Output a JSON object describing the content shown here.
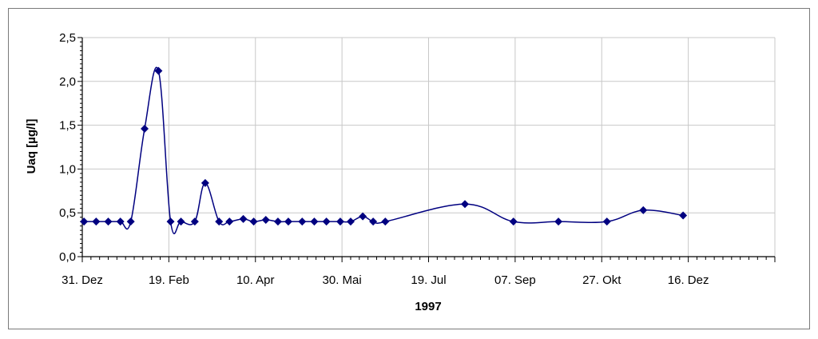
{
  "chart_data": {
    "type": "line",
    "title": "",
    "xlabel": "1997",
    "ylabel": "Uaq [µg/l]",
    "x_tick_labels": [
      "31. Dez",
      "19. Feb",
      "10. Apr",
      "30. Mai",
      "19. Jul",
      "07. Sep",
      "27. Okt",
      "16. Dez"
    ],
    "x_tick_days": [
      0,
      50,
      100,
      150,
      200,
      250,
      300,
      350
    ],
    "x_range_days": [
      0,
      400
    ],
    "y_ticks": [
      0.0,
      0.5,
      1.0,
      1.5,
      2.0,
      2.5
    ],
    "y_tick_labels": [
      "0,0",
      "0,5",
      "1,0",
      "1,5",
      "2,0",
      "2,5"
    ],
    "ylim": [
      0,
      2.5
    ],
    "grid": true,
    "x_axis_note": "x values are days after 31. Dez 1996",
    "series": [
      {
        "color": "#000080",
        "marker": "diamond",
        "x": [
          1,
          8,
          15,
          22,
          28,
          36,
          44,
          51,
          57,
          65,
          71,
          79,
          85,
          93,
          99,
          106,
          113,
          119,
          127,
          134,
          141,
          149,
          155,
          162,
          168,
          175,
          221,
          249,
          275,
          303,
          324,
          347
        ],
        "y": [
          0.4,
          0.4,
          0.4,
          0.4,
          0.4,
          1.46,
          2.12,
          0.4,
          0.4,
          0.4,
          0.84,
          0.4,
          0.4,
          0.43,
          0.4,
          0.42,
          0.4,
          0.4,
          0.4,
          0.4,
          0.4,
          0.4,
          0.4,
          0.46,
          0.4,
          0.4,
          0.6,
          0.4,
          0.4,
          0.4,
          0.53,
          0.47
        ]
      }
    ]
  }
}
